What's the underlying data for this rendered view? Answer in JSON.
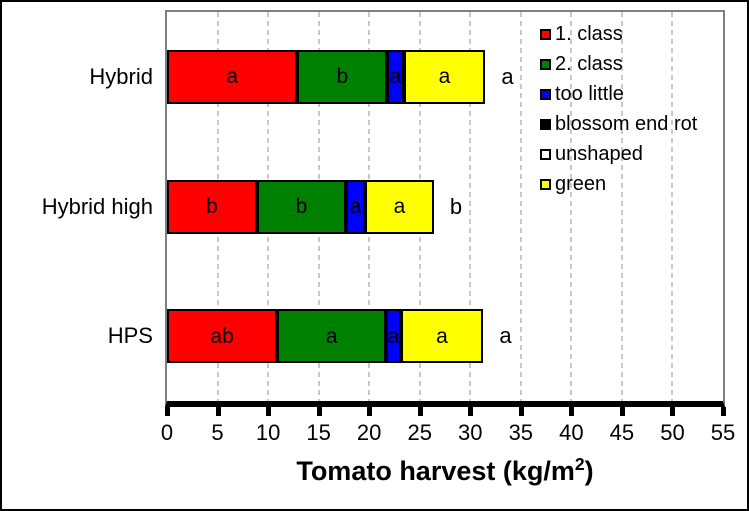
{
  "chart_data": {
    "type": "bar",
    "orientation": "horizontal",
    "stacked": true,
    "xlabel": "Tomato harvest (kg/m²)",
    "xlabel_parts": {
      "pre": "Tomato harvest (kg/m",
      "sup": "2",
      "post": ")"
    },
    "xlim": [
      0,
      55
    ],
    "xticks": [
      0,
      5,
      10,
      15,
      20,
      25,
      30,
      35,
      40,
      45,
      50,
      55
    ],
    "grid": "vertical-dashed",
    "gridline_color": "#c9c9c9",
    "plot_border_color": "#808080",
    "axis_line_color": "#000000",
    "background_color": "#ffffff",
    "legend_position": "top-right-inside",
    "categories": [
      "Hybrid",
      "Hybrid high",
      "HPS"
    ],
    "category_sig_letters": [
      "a",
      "b",
      "a"
    ],
    "series": [
      {
        "name": "1. class",
        "color": "#ff0000",
        "values": [
          12.9,
          8.9,
          10.9
        ],
        "segment_labels": [
          "a",
          "b",
          "ab"
        ]
      },
      {
        "name": "2. class",
        "color": "#008000",
        "values": [
          8.9,
          8.8,
          10.8
        ],
        "segment_labels": [
          "b",
          "b",
          "a"
        ]
      },
      {
        "name": "too little",
        "color": "#0000ff",
        "values": [
          1.6,
          1.9,
          1.4
        ],
        "segment_labels": [
          "a",
          "a",
          "a"
        ]
      },
      {
        "name": "blossom end rot",
        "color": "#000000",
        "values": [
          0,
          0,
          0
        ],
        "segment_labels": [
          "",
          "",
          ""
        ]
      },
      {
        "name": "unshaped",
        "color": "#ffffff",
        "values": [
          0,
          0,
          0
        ],
        "segment_labels": [
          "",
          "",
          ""
        ]
      },
      {
        "name": "green",
        "color": "#ffff00",
        "values": [
          8.1,
          6.8,
          8.2
        ],
        "segment_labels": [
          "a",
          "a",
          "a"
        ]
      }
    ],
    "totals": [
      31.5,
      26.4,
      31.3
    ]
  }
}
